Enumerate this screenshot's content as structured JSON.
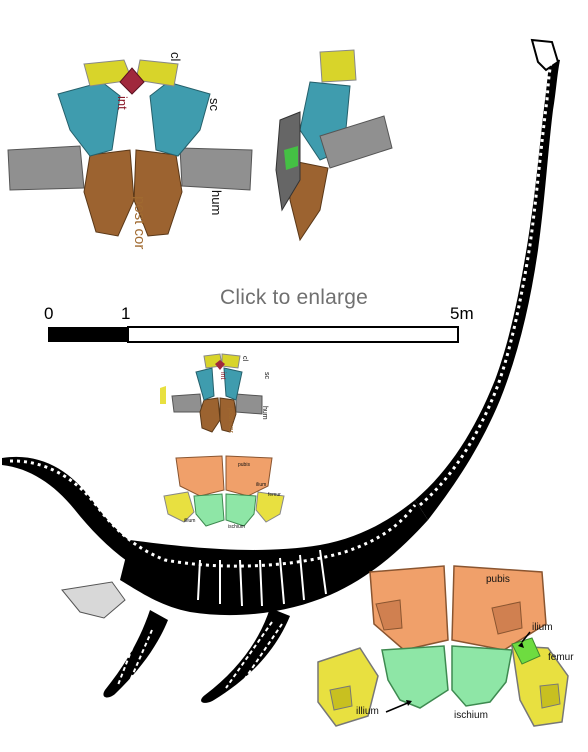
{
  "header": {
    "enlarge_label": "Click to enlarge"
  },
  "pectoral_large": {
    "cl": "cl",
    "int": "int",
    "sc": "sc",
    "hum": "hum",
    "post_cor": "post cor"
  },
  "pectoral_small": {
    "cl": "cl",
    "int": "int",
    "sc": "sc",
    "hum": "hum",
    "post_cor": "post cor"
  },
  "pelvic_small": {
    "pubis": "pubis",
    "ilium": "ilium",
    "femur": "femur",
    "illium": "illium",
    "ischium": "ischium"
  },
  "pelvic_large": {
    "pubis": "pubis",
    "ilium": "ilium",
    "femur": "femur",
    "illium": "illium",
    "ischium": "ischium"
  },
  "scale_bar": {
    "zero": "0",
    "one": "1",
    "five": "5m"
  },
  "colors": {
    "clavicle": "#d8d42a",
    "interclavicle": "#a0283c",
    "scapula": "#3f9cae",
    "humerus": "#909090",
    "coracoid": "#9c6330",
    "pubis": "#f0a06a",
    "ischium": "#8ee6a6",
    "femur": "#e8e040"
  }
}
